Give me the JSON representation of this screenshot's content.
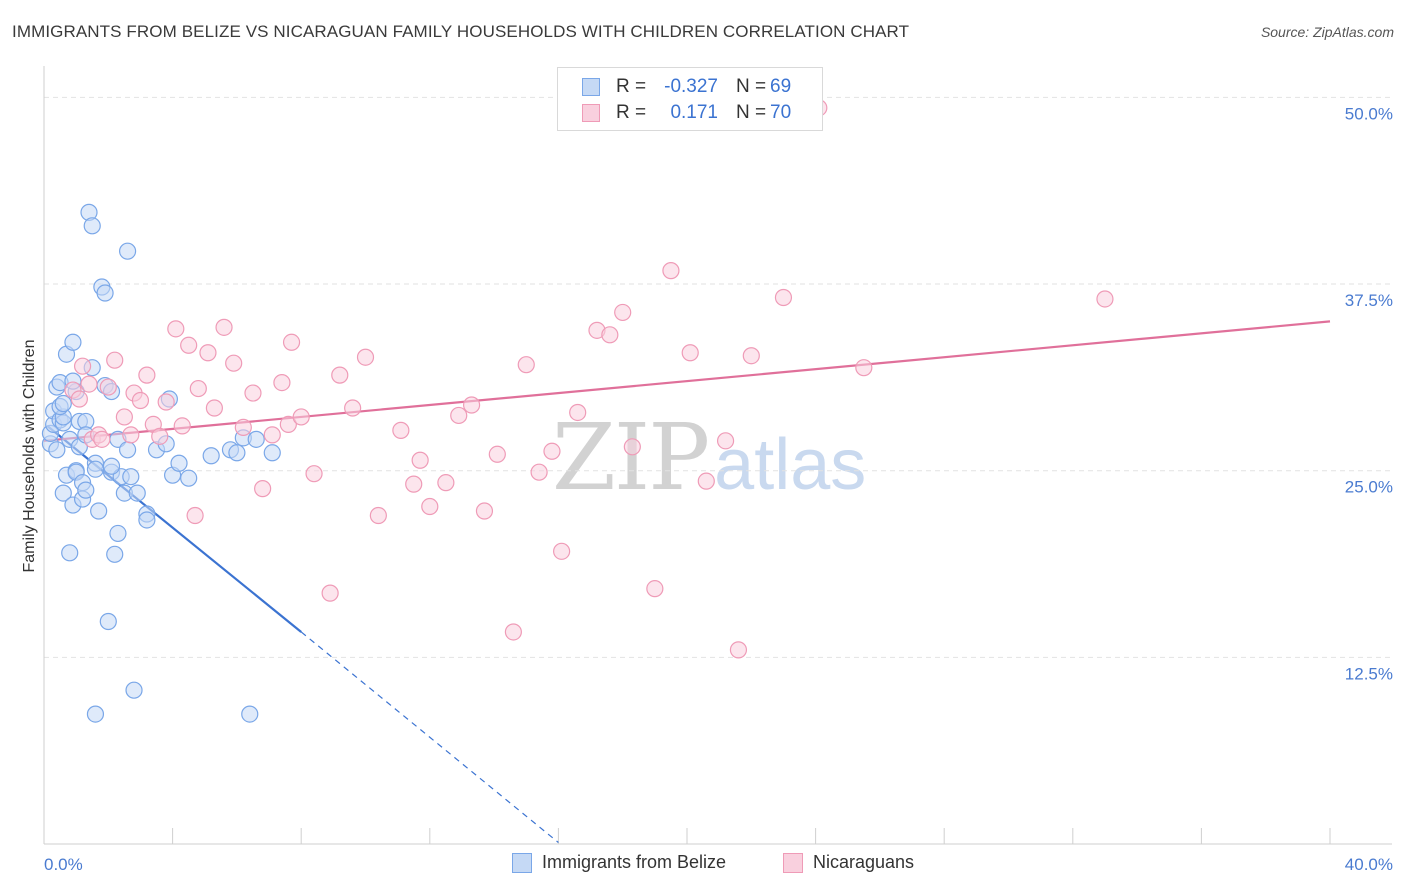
{
  "header": {
    "title": "IMMIGRANTS FROM BELIZE VS NICARAGUAN FAMILY HOUSEHOLDS WITH CHILDREN CORRELATION CHART",
    "source": "Source: ZipAtlas.com"
  },
  "watermark": {
    "zip": "ZIP",
    "atlas": "atlas"
  },
  "legend": {
    "rows": [
      {
        "r_label": "R =",
        "r_value": "-0.327",
        "n_label": "N =",
        "n_value": "69",
        "color": "#7aa7e8",
        "fill": "#c5d9f5"
      },
      {
        "r_label": "R =",
        "r_value": "0.171",
        "n_label": "N =",
        "n_value": "70",
        "color": "#ef9bb7",
        "fill": "#f9d0de"
      }
    ]
  },
  "bottom_legend": {
    "items": [
      {
        "label": "Immigrants from Belize",
        "color": "#7aa7e8",
        "fill": "#c5d9f5"
      },
      {
        "label": "Nicaraguans",
        "color": "#ef9bb7",
        "fill": "#f9d0de"
      }
    ]
  },
  "chart_data": {
    "type": "scatter",
    "title": "IMMIGRANTS FROM BELIZE VS NICARAGUAN FAMILY HOUSEHOLDS WITH CHILDREN CORRELATION CHART",
    "xlabel": "",
    "ylabel": "Family Households with Children",
    "xlim": [
      0,
      40
    ],
    "ylim": [
      0,
      51.5
    ],
    "x_tick_labels": [
      "0.0%",
      "40.0%"
    ],
    "y_ticks": [
      12.5,
      25.0,
      37.5,
      50.0
    ],
    "y_tick_labels": [
      "12.5%",
      "25.0%",
      "37.5%",
      "50.0%"
    ],
    "grid": true,
    "series": [
      {
        "name": "Immigrants from Belize",
        "color": "#3b73d1",
        "marker_stroke": "#7aa7e8",
        "marker_fill": "#c5d9f5",
        "trend": {
          "x0": 0.1,
          "y0": 28.0,
          "x1": 8.0,
          "y1": 14.2,
          "dash_to_x": 16.0,
          "dash_to_y": 0.1
        },
        "points": [
          [
            0.2,
            26.8
          ],
          [
            0.2,
            27.5
          ],
          [
            0.3,
            28.1
          ],
          [
            0.3,
            29.0
          ],
          [
            0.4,
            26.4
          ],
          [
            0.4,
            30.6
          ],
          [
            0.5,
            28.4
          ],
          [
            0.5,
            30.9
          ],
          [
            0.6,
            23.5
          ],
          [
            0.6,
            28.2
          ],
          [
            0.6,
            28.6
          ],
          [
            0.7,
            24.7
          ],
          [
            0.7,
            32.8
          ],
          [
            0.8,
            19.5
          ],
          [
            0.8,
            27.1
          ],
          [
            0.9,
            33.6
          ],
          [
            0.9,
            22.7
          ],
          [
            1.0,
            25.0
          ],
          [
            1.0,
            24.9
          ],
          [
            1.0,
            30.3
          ],
          [
            1.1,
            28.3
          ],
          [
            1.1,
            26.6
          ],
          [
            1.2,
            23.1
          ],
          [
            1.2,
            24.2
          ],
          [
            1.3,
            28.3
          ],
          [
            1.3,
            23.7
          ],
          [
            1.3,
            27.4
          ],
          [
            1.4,
            42.3
          ],
          [
            1.5,
            41.4
          ],
          [
            1.5,
            31.9
          ],
          [
            1.6,
            25.5
          ],
          [
            1.6,
            25.1
          ],
          [
            1.7,
            22.3
          ],
          [
            1.8,
            37.3
          ],
          [
            1.9,
            36.9
          ],
          [
            1.9,
            30.7
          ],
          [
            2.0,
            14.9
          ],
          [
            2.1,
            24.9
          ],
          [
            2.1,
            30.3
          ],
          [
            2.2,
            19.4
          ],
          [
            2.3,
            27.1
          ],
          [
            2.3,
            20.8
          ],
          [
            2.4,
            24.6
          ],
          [
            2.5,
            23.5
          ],
          [
            2.6,
            39.7
          ],
          [
            2.6,
            26.4
          ],
          [
            2.7,
            24.6
          ],
          [
            2.8,
            10.3
          ],
          [
            2.9,
            23.5
          ],
          [
            3.2,
            22.1
          ],
          [
            3.2,
            21.7
          ],
          [
            3.5,
            26.4
          ],
          [
            3.8,
            26.8
          ],
          [
            3.9,
            29.8
          ],
          [
            4.0,
            24.7
          ],
          [
            4.2,
            25.5
          ],
          [
            4.5,
            24.5
          ],
          [
            5.2,
            26.0
          ],
          [
            5.8,
            26.4
          ],
          [
            6.0,
            26.2
          ],
          [
            6.2,
            27.2
          ],
          [
            6.4,
            8.7
          ],
          [
            6.6,
            27.1
          ],
          [
            7.1,
            26.2
          ],
          [
            0.5,
            29.3
          ],
          [
            0.6,
            29.5
          ],
          [
            0.9,
            31.0
          ],
          [
            1.6,
            8.7
          ],
          [
            2.1,
            25.3
          ]
        ]
      },
      {
        "name": "Nicaraguans",
        "color": "#e0709a",
        "marker_stroke": "#ef9bb7",
        "marker_fill": "#f9d0de",
        "trend": {
          "x0": 0.0,
          "y0": 27.0,
          "x1": 40.0,
          "y1": 35.0
        },
        "points": [
          [
            0.9,
            30.4
          ],
          [
            1.1,
            29.8
          ],
          [
            1.2,
            32.0
          ],
          [
            1.4,
            30.8
          ],
          [
            1.5,
            27.1
          ],
          [
            1.7,
            27.4
          ],
          [
            1.8,
            27.1
          ],
          [
            2.0,
            30.6
          ],
          [
            2.2,
            32.4
          ],
          [
            2.5,
            28.6
          ],
          [
            2.7,
            27.4
          ],
          [
            2.8,
            30.2
          ],
          [
            3.0,
            29.7
          ],
          [
            3.2,
            31.4
          ],
          [
            3.4,
            28.1
          ],
          [
            3.6,
            27.3
          ],
          [
            3.8,
            29.6
          ],
          [
            4.1,
            34.5
          ],
          [
            4.3,
            28.0
          ],
          [
            4.5,
            33.4
          ],
          [
            4.7,
            22.0
          ],
          [
            4.8,
            30.5
          ],
          [
            5.1,
            32.9
          ],
          [
            5.3,
            29.2
          ],
          [
            5.6,
            34.6
          ],
          [
            5.9,
            32.2
          ],
          [
            6.2,
            27.9
          ],
          [
            6.5,
            30.2
          ],
          [
            6.8,
            23.8
          ],
          [
            7.1,
            27.4
          ],
          [
            7.4,
            30.9
          ],
          [
            7.6,
            28.1
          ],
          [
            7.7,
            33.6
          ],
          [
            8.0,
            28.6
          ],
          [
            8.4,
            24.8
          ],
          [
            8.9,
            16.8
          ],
          [
            9.2,
            31.4
          ],
          [
            9.6,
            29.2
          ],
          [
            10.0,
            32.6
          ],
          [
            10.4,
            22.0
          ],
          [
            11.1,
            27.7
          ],
          [
            11.5,
            24.1
          ],
          [
            11.7,
            25.7
          ],
          [
            12.0,
            22.6
          ],
          [
            12.5,
            24.2
          ],
          [
            12.9,
            28.7
          ],
          [
            13.3,
            29.4
          ],
          [
            13.7,
            22.3
          ],
          [
            14.1,
            26.1
          ],
          [
            14.6,
            14.2
          ],
          [
            15.0,
            32.1
          ],
          [
            15.4,
            24.9
          ],
          [
            15.8,
            26.3
          ],
          [
            16.1,
            19.6
          ],
          [
            16.6,
            28.9
          ],
          [
            17.2,
            34.4
          ],
          [
            17.6,
            34.1
          ],
          [
            18.0,
            35.6
          ],
          [
            18.3,
            26.6
          ],
          [
            19.0,
            17.1
          ],
          [
            19.5,
            38.4
          ],
          [
            20.1,
            32.9
          ],
          [
            20.6,
            24.3
          ],
          [
            21.2,
            27.0
          ],
          [
            21.6,
            13.0
          ],
          [
            22.0,
            32.7
          ],
          [
            23.0,
            36.6
          ],
          [
            24.1,
            49.3
          ],
          [
            25.5,
            31.9
          ],
          [
            33.0,
            36.5
          ]
        ]
      }
    ]
  }
}
